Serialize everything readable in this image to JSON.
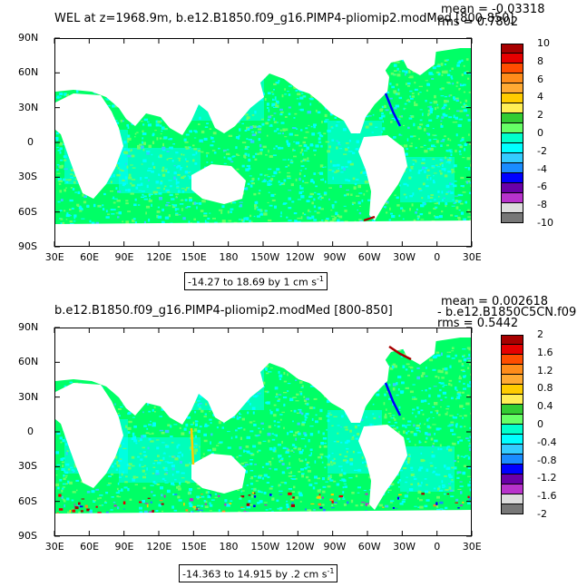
{
  "colors": {
    "ocean_base": "#00ff66",
    "cyan": "#00ffff",
    "land": "#ffffff",
    "palette": [
      "#a80000",
      "#e60000",
      "#ff4d00",
      "#ff8c1a",
      "#ffaa33",
      "#ffcc00",
      "#ffee55",
      "#33cc33",
      "#66ff66",
      "#00ffcc",
      "#00ffff",
      "#33ccff",
      "#1a8cff",
      "#0000ff",
      "#6a00a8",
      "#b833cc",
      "#dddddd",
      "#777777"
    ]
  },
  "panels": [
    {
      "title_left": "WEL at z=1968.9m, b.e12.B1850.f09_g16.PIMP4-pliomip2.modMed [800-850]",
      "stat_mean": "mean = -0.03318",
      "stat_rms": "rms = 0.7802",
      "range_text": "-14.27 to 18.69 by 1 cm s",
      "range_sup": "-1",
      "lat_labels": [
        "90N",
        "60N",
        "30N",
        "0",
        "30S",
        "60S",
        "90S"
      ],
      "lon_labels": [
        "30E",
        "60E",
        "90E",
        "120E",
        "150E",
        "180",
        "150W",
        "120W",
        "90W",
        "60W",
        "30W",
        "0",
        "30E"
      ],
      "colorbar_labels": [
        "10",
        "8",
        "6",
        "4",
        "2",
        "0",
        "-2",
        "-4",
        "-6",
        "-8",
        "-10"
      ]
    },
    {
      "title_left": "b.e12.B1850.f09_g16.PIMP4-pliomip2.modMed [800-850]",
      "title_right": "- b.e12.B1850C5CN.f09",
      "stat_mean": "mean = 0.002618",
      "stat_rms": "rms = 0.5442",
      "range_text": "-14.363 to 14.915 by .2 cm s",
      "range_sup": "-1",
      "lat_labels": [
        "90N",
        "60N",
        "30N",
        "0",
        "30S",
        "60S",
        "90S"
      ],
      "lon_labels": [
        "30E",
        "60E",
        "90E",
        "120E",
        "150E",
        "180",
        "150W",
        "120W",
        "90W",
        "60W",
        "30W",
        "0",
        "30E"
      ],
      "colorbar_labels": [
        "2",
        "1.6",
        "1.2",
        "0.8",
        "0.4",
        "0",
        "-0.4",
        "-0.8",
        "-1.2",
        "-1.6",
        "-2"
      ]
    }
  ]
}
